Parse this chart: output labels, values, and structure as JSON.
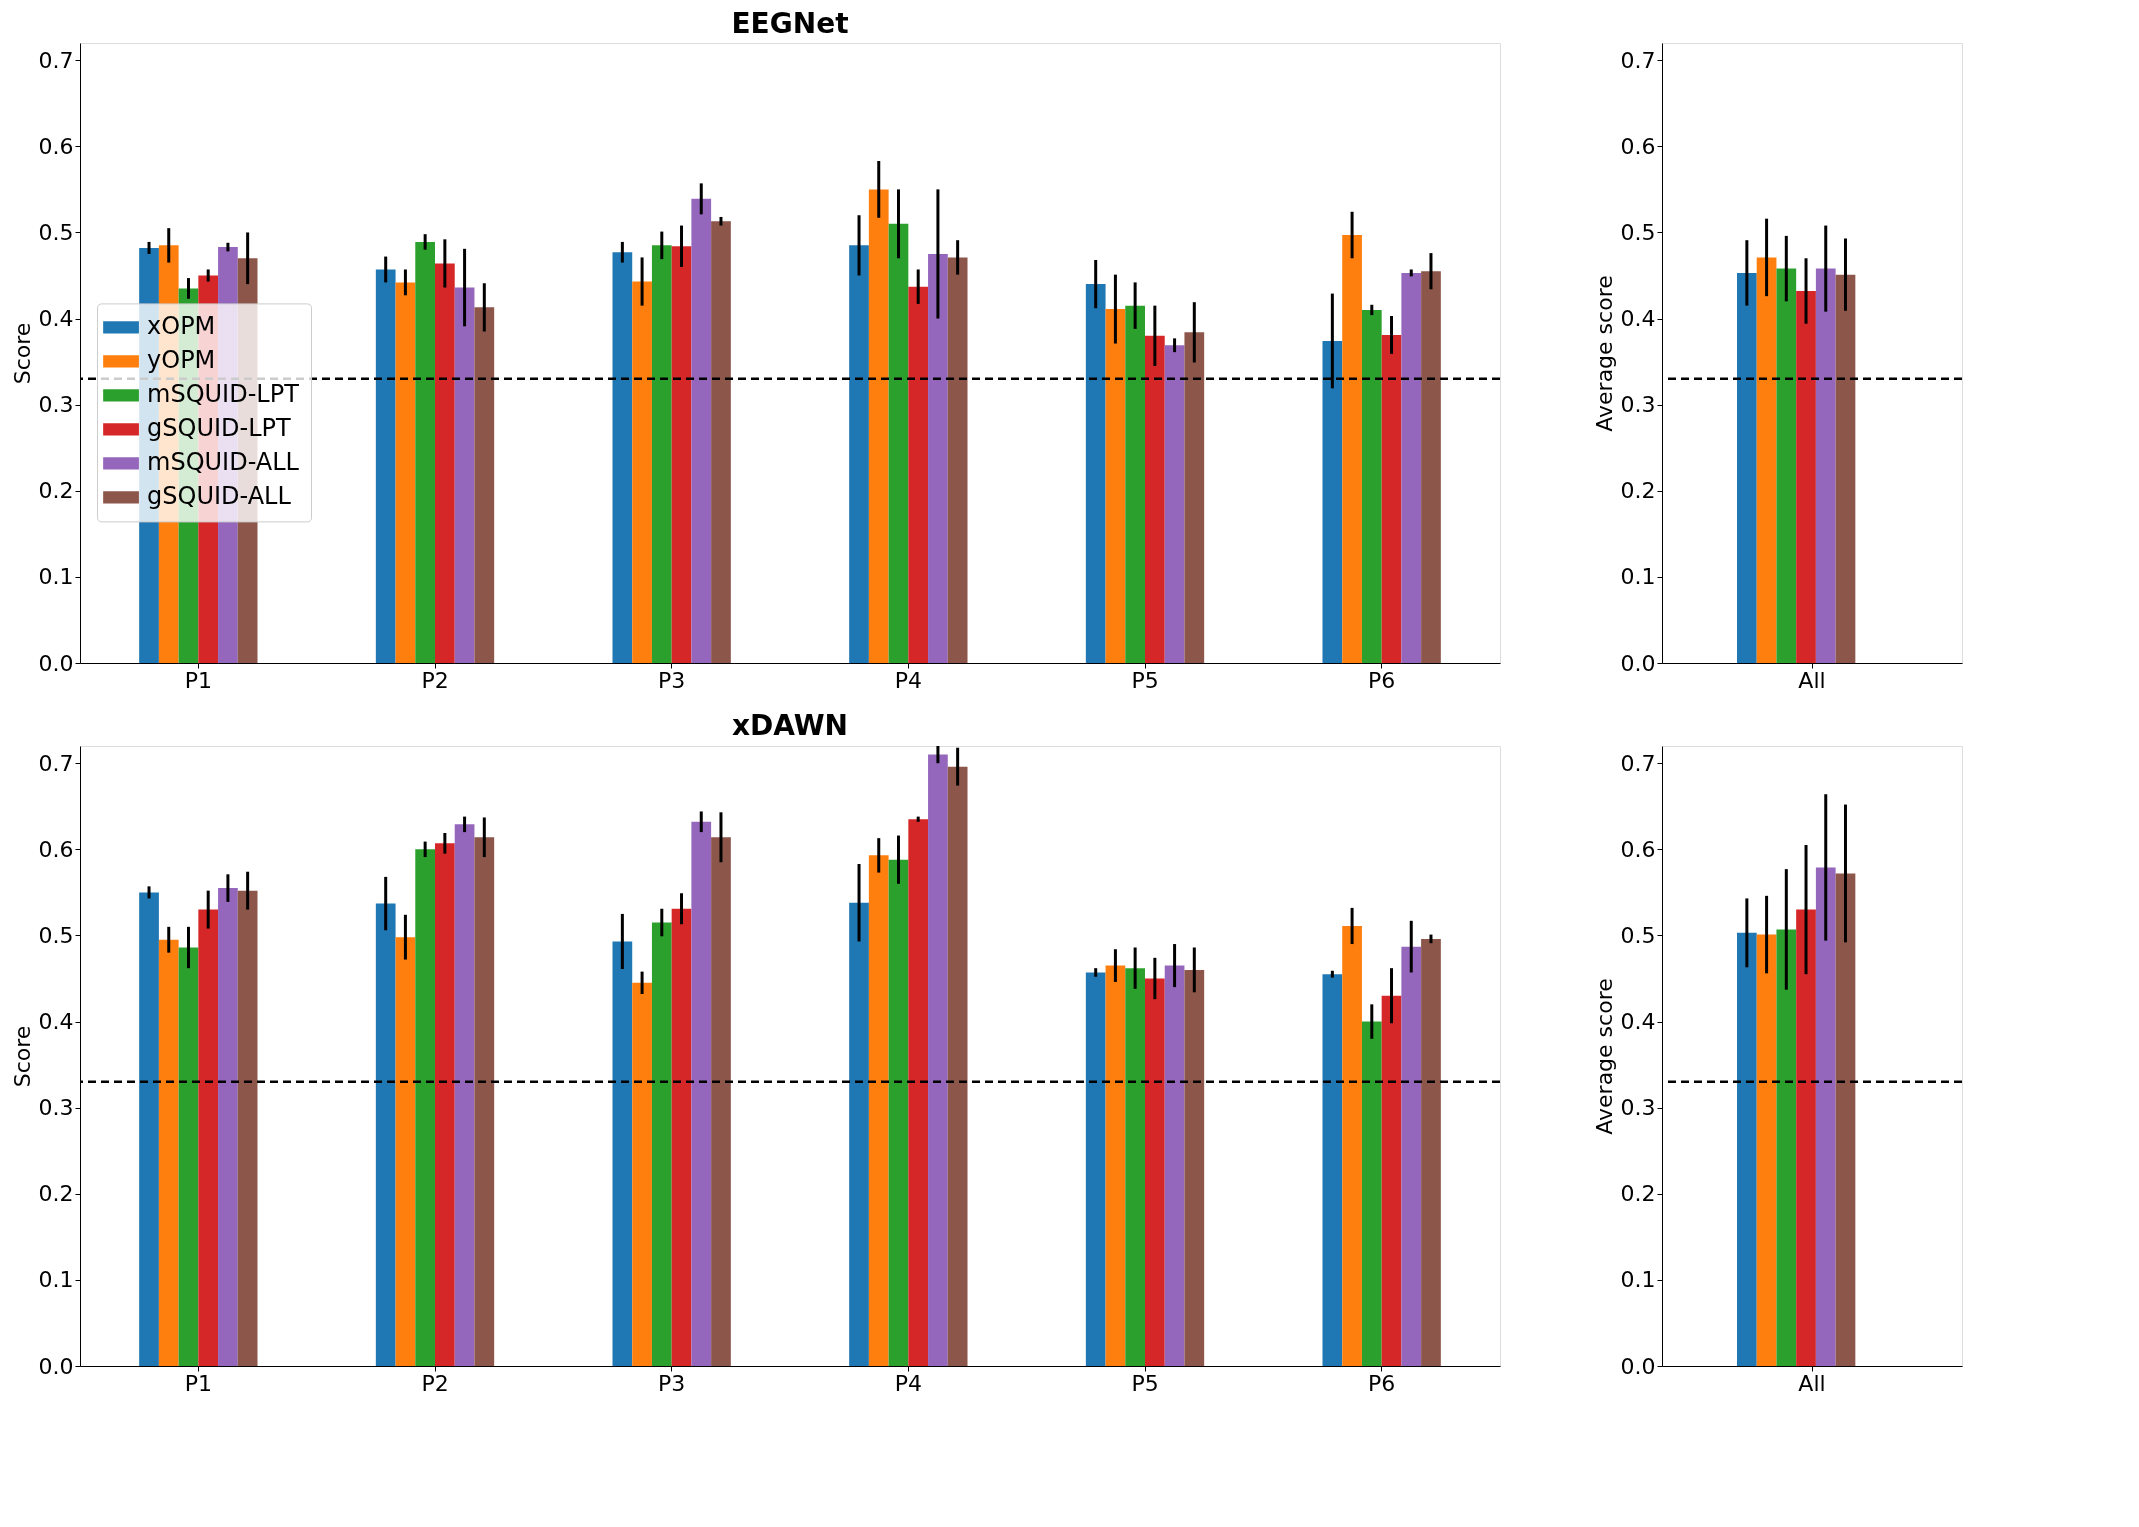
{
  "chart_data": [
    {
      "type": "bar",
      "title": "EEGNet",
      "ylabel": "Score",
      "categories": [
        "P1",
        "P2",
        "P3",
        "P4",
        "P5",
        "P6"
      ],
      "ylim": [
        0,
        0.72
      ],
      "yticks": [
        {
          "value": 0,
          "label": "0.0"
        },
        0.1,
        0.2,
        0.3,
        0.4,
        0.5,
        0.6,
        0.7
      ],
      "legend": "left",
      "ref_lines": [
        {
          "axis": "y",
          "value": 0.33,
          "color": "#000000",
          "line_style": "dashed"
        }
      ],
      "series": [
        {
          "name": "xOPM",
          "color": "#1f77b4",
          "values": [
            0.482,
            0.457,
            0.477,
            0.485,
            0.44,
            0.374
          ],
          "errors": [
            0.007,
            0.015,
            0.012,
            0.035,
            0.028,
            0.055
          ]
        },
        {
          "name": "yOPM",
          "color": "#ff7f0e",
          "values": [
            0.485,
            0.442,
            0.443,
            0.55,
            0.411,
            0.497
          ],
          "errors": [
            0.02,
            0.015,
            0.028,
            0.033,
            0.04,
            0.027
          ]
        },
        {
          "name": "mSQUID-LPT",
          "color": "#2ca02c",
          "values": [
            0.435,
            0.489,
            0.485,
            0.51,
            0.415,
            0.41
          ],
          "errors": [
            0.012,
            0.009,
            0.016,
            0.04,
            0.027,
            0.006
          ]
        },
        {
          "name": "gSQUID-LPT",
          "color": "#d62728",
          "values": [
            0.45,
            0.464,
            0.484,
            0.437,
            0.38,
            0.381
          ],
          "errors": [
            0.007,
            0.028,
            0.024,
            0.02,
            0.035,
            0.022
          ]
        },
        {
          "name": "mSQUID-ALL",
          "color": "#9467bd",
          "values": [
            0.483,
            0.436,
            0.539,
            0.475,
            0.369,
            0.453
          ],
          "errors": [
            0.005,
            0.045,
            0.018,
            0.075,
            0.008,
            0.004
          ]
        },
        {
          "name": "gSQUID-ALL",
          "color": "#8c564b",
          "values": [
            0.47,
            0.413,
            0.513,
            0.471,
            0.384,
            0.455
          ],
          "errors": [
            0.03,
            0.028,
            0.005,
            0.02,
            0.035,
            0.021
          ]
        }
      ]
    },
    {
      "type": "bar",
      "ylabel": "Average score",
      "categories": [
        "All"
      ],
      "ylim": [
        0,
        0.72
      ],
      "yticks": [
        {
          "value": 0,
          "label": "0.0"
        },
        0.1,
        0.2,
        0.3,
        0.4,
        0.5,
        0.6,
        0.7
      ],
      "ref_lines": [
        {
          "axis": "y",
          "value": 0.33,
          "color": "#000000",
          "line_style": "dashed"
        }
      ],
      "series": [
        {
          "color": "#1f77b4",
          "values": [
            0.453
          ],
          "errors": [
            0.038
          ]
        },
        {
          "color": "#ff7f0e",
          "values": [
            0.471
          ],
          "errors": [
            0.045
          ]
        },
        {
          "color": "#2ca02c",
          "values": [
            0.458
          ],
          "errors": [
            0.038
          ]
        },
        {
          "color": "#d62728",
          "values": [
            0.432
          ],
          "errors": [
            0.038
          ]
        },
        {
          "color": "#9467bd",
          "values": [
            0.458
          ],
          "errors": [
            0.05
          ]
        },
        {
          "color": "#8c564b",
          "values": [
            0.451
          ],
          "errors": [
            0.042
          ]
        }
      ]
    },
    {
      "type": "bar",
      "title": "xDAWN",
      "ylabel": "Score",
      "categories": [
        "P1",
        "P2",
        "P3",
        "P4",
        "P5",
        "P6"
      ],
      "ylim": [
        0,
        0.72
      ],
      "yticks": [
        {
          "value": 0,
          "label": "0.0"
        },
        0.1,
        0.2,
        0.3,
        0.4,
        0.5,
        0.6,
        0.7
      ],
      "ref_lines": [
        {
          "axis": "y",
          "value": 0.33,
          "color": "#000000",
          "line_style": "dashed"
        }
      ],
      "series": [
        {
          "color": "#1f77b4",
          "values": [
            0.55,
            0.537,
            0.493,
            0.538,
            0.457,
            0.455
          ],
          "errors": [
            0.007,
            0.031,
            0.032,
            0.045,
            0.005,
            0.004
          ]
        },
        {
          "color": "#ff7f0e",
          "values": [
            0.495,
            0.498,
            0.445,
            0.593,
            0.465,
            0.511
          ],
          "errors": [
            0.015,
            0.026,
            0.013,
            0.02,
            0.019,
            0.021
          ]
        },
        {
          "color": "#2ca02c",
          "values": [
            0.486,
            0.6,
            0.515,
            0.588,
            0.462,
            0.4
          ],
          "errors": [
            0.024,
            0.009,
            0.016,
            0.028,
            0.024,
            0.02
          ]
        },
        {
          "color": "#d62728",
          "values": [
            0.53,
            0.607,
            0.531,
            0.635,
            0.45,
            0.43
          ],
          "errors": [
            0.022,
            0.012,
            0.018,
            0.003,
            0.024,
            0.032
          ]
        },
        {
          "color": "#9467bd",
          "values": [
            0.555,
            0.629,
            0.632,
            0.71,
            0.465,
            0.487
          ],
          "errors": [
            0.016,
            0.009,
            0.012,
            0.01,
            0.025,
            0.03
          ]
        },
        {
          "color": "#8c564b",
          "values": [
            0.552,
            0.614,
            0.614,
            0.696,
            0.46,
            0.496
          ],
          "errors": [
            0.022,
            0.023,
            0.029,
            0.022,
            0.026,
            0.005
          ]
        }
      ]
    },
    {
      "type": "bar",
      "ylabel": "Average score",
      "categories": [
        "All"
      ],
      "ylim": [
        0,
        0.72
      ],
      "yticks": [
        {
          "value": 0,
          "label": "0.0"
        },
        0.1,
        0.2,
        0.3,
        0.4,
        0.5,
        0.6,
        0.7
      ],
      "ref_lines": [
        {
          "axis": "y",
          "value": 0.33,
          "color": "#000000",
          "line_style": "dashed"
        }
      ],
      "series": [
        {
          "color": "#1f77b4",
          "values": [
            0.503
          ],
          "errors": [
            0.04
          ]
        },
        {
          "color": "#ff7f0e",
          "values": [
            0.501
          ],
          "errors": [
            0.045
          ]
        },
        {
          "color": "#2ca02c",
          "values": [
            0.507
          ],
          "errors": [
            0.07
          ]
        },
        {
          "color": "#d62728",
          "values": [
            0.53
          ],
          "errors": [
            0.075
          ]
        },
        {
          "color": "#9467bd",
          "values": [
            0.579
          ],
          "errors": [
            0.085
          ]
        },
        {
          "color": "#8c564b",
          "values": [
            0.572
          ],
          "errors": [
            0.08
          ]
        }
      ]
    }
  ]
}
